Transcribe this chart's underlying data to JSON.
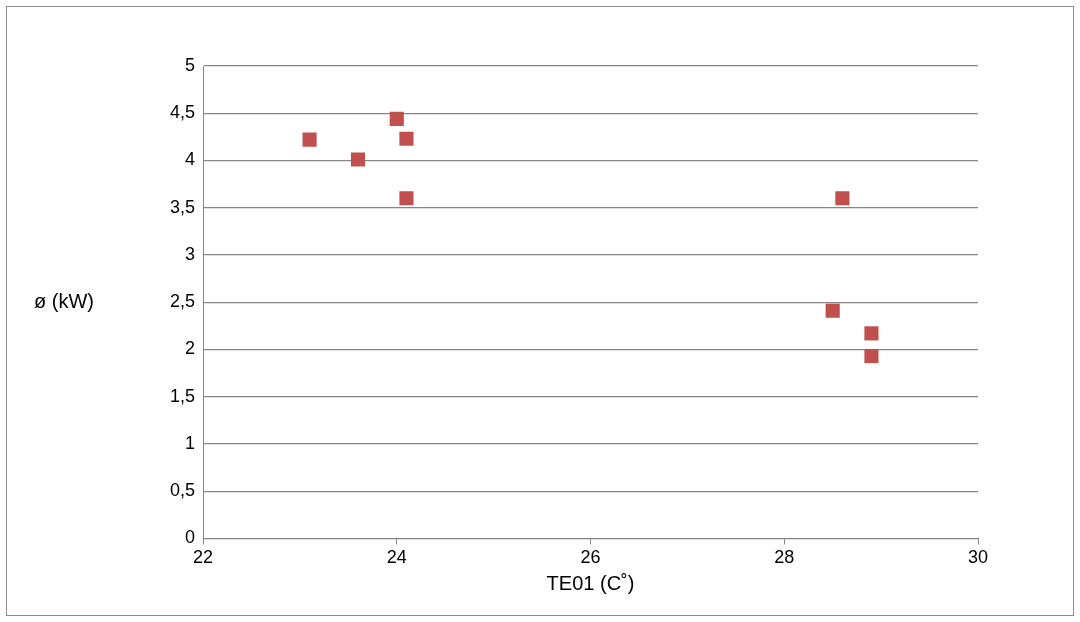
{
  "chart_data": {
    "type": "scatter",
    "xlabel": "TE01 (C˚)",
    "ylabel": "ø (kW)",
    "x": [
      23.1,
      23.6,
      24.0,
      24.1,
      24.1,
      28.6,
      28.5,
      28.9,
      28.9
    ],
    "series": [
      {
        "color": "#c0504d",
        "values": [
          4.22,
          4.01,
          4.44,
          4.23,
          3.6,
          3.6,
          2.41,
          2.17,
          1.93
        ]
      }
    ],
    "xlim": [
      22,
      30
    ],
    "xticks": [
      22,
      24,
      26,
      28,
      30
    ],
    "ylim": [
      0,
      5
    ],
    "yticks": [
      0,
      {
        "value": 0.5,
        "label": "0,5"
      },
      1,
      {
        "value": 1.5,
        "label": "1,5"
      },
      2,
      {
        "value": 2.5,
        "label": "2,5"
      },
      3,
      {
        "value": 3.5,
        "label": "3,5"
      },
      4,
      {
        "value": 4.5,
        "label": "4,5"
      },
      5
    ],
    "grid": "y",
    "legend": false,
    "marker": "square"
  }
}
